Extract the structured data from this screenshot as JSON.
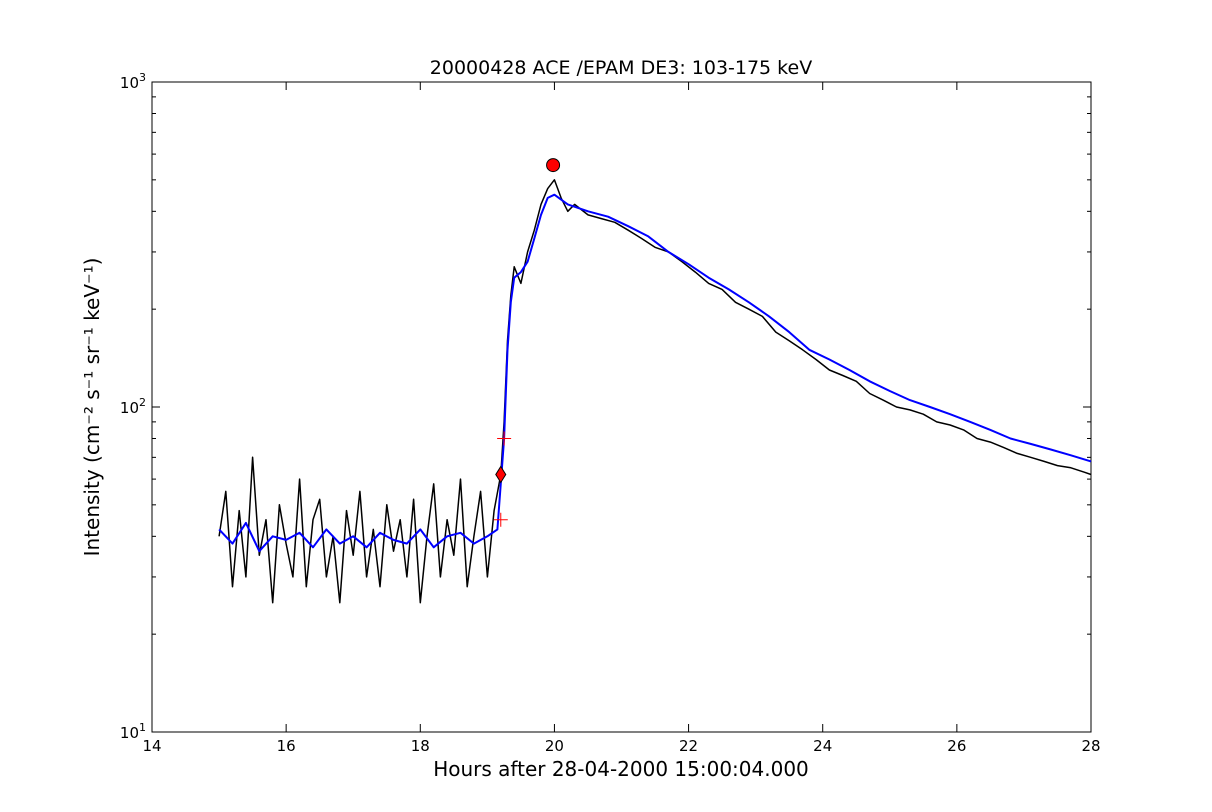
{
  "chart_data": {
    "type": "line",
    "title": "20000428 ACE /EPAM DE3: 103-175 keV",
    "xlabel": "Hours after 28-04-2000 15:00:04.000",
    "ylabel": "Intensity (cm⁻² s⁻¹ sr⁻¹ keV⁻¹)",
    "xlim": [
      14,
      28
    ],
    "ylim": [
      10,
      1000
    ],
    "yscale": "log",
    "grid": false,
    "xticks": [
      14,
      16,
      18,
      20,
      22,
      24,
      26,
      28
    ],
    "xtick_labels": [
      "14",
      "16",
      "18",
      "20",
      "22",
      "24",
      "26",
      "28"
    ],
    "yticks": [
      10,
      100,
      1000
    ],
    "ytick_base": "10",
    "ytick_exponents": [
      "1",
      "2",
      "3"
    ],
    "colors": {
      "raw": "#000000",
      "smoothed": "#0000ff",
      "marker": "#ff0000"
    },
    "series": [
      {
        "role": "raw",
        "x": [
          15.0,
          15.1,
          15.2,
          15.3,
          15.4,
          15.5,
          15.6,
          15.7,
          15.8,
          15.9,
          16.0,
          16.1,
          16.2,
          16.3,
          16.4,
          16.5,
          16.6,
          16.7,
          16.8,
          16.9,
          17.0,
          17.1,
          17.2,
          17.3,
          17.4,
          17.5,
          17.6,
          17.7,
          17.8,
          17.9,
          18.0,
          18.1,
          18.2,
          18.3,
          18.4,
          18.5,
          18.6,
          18.7,
          18.8,
          18.9,
          19.0,
          19.1,
          19.2,
          19.25,
          19.3,
          19.35,
          19.4,
          19.5,
          19.6,
          19.7,
          19.8,
          19.9,
          20.0,
          20.1,
          20.2,
          20.3,
          20.5,
          20.7,
          20.9,
          21.1,
          21.3,
          21.5,
          21.7,
          21.9,
          22.1,
          22.3,
          22.5,
          22.7,
          22.9,
          23.1,
          23.3,
          23.5,
          23.7,
          23.9,
          24.1,
          24.3,
          24.5,
          24.7,
          24.9,
          25.1,
          25.3,
          25.5,
          25.7,
          25.9,
          26.1,
          26.3,
          26.5,
          26.7,
          26.9,
          27.1,
          27.3,
          27.5,
          27.7,
          27.9,
          28.0
        ],
        "y": [
          40,
          55,
          28,
          48,
          30,
          70,
          35,
          45,
          25,
          50,
          38,
          30,
          60,
          28,
          45,
          52,
          30,
          40,
          25,
          48,
          35,
          55,
          30,
          42,
          28,
          50,
          36,
          45,
          30,
          52,
          25,
          40,
          58,
          30,
          45,
          35,
          60,
          28,
          40,
          55,
          30,
          48,
          62,
          90,
          160,
          220,
          270,
          240,
          300,
          350,
          420,
          470,
          500,
          440,
          400,
          420,
          390,
          380,
          370,
          350,
          330,
          310,
          300,
          280,
          260,
          240,
          230,
          210,
          200,
          190,
          170,
          160,
          150,
          140,
          130,
          125,
          120,
          110,
          105,
          100,
          98,
          95,
          90,
          88,
          85,
          80,
          78,
          75,
          72,
          70,
          68,
          66,
          65,
          63,
          62
        ]
      },
      {
        "role": "smoothed",
        "x": [
          15.0,
          15.2,
          15.4,
          15.6,
          15.8,
          16.0,
          16.2,
          16.4,
          16.6,
          16.8,
          17.0,
          17.2,
          17.4,
          17.6,
          17.8,
          18.0,
          18.2,
          18.4,
          18.6,
          18.8,
          19.0,
          19.15,
          19.25,
          19.3,
          19.35,
          19.4,
          19.5,
          19.6,
          19.7,
          19.8,
          19.9,
          20.0,
          20.2,
          20.5,
          20.8,
          21.1,
          21.4,
          21.7,
          22.0,
          22.3,
          22.6,
          22.9,
          23.2,
          23.5,
          23.8,
          24.1,
          24.4,
          24.7,
          25.0,
          25.3,
          25.6,
          25.9,
          26.2,
          26.5,
          26.8,
          27.1,
          27.4,
          27.7,
          28.0
        ],
        "y": [
          42,
          38,
          44,
          36,
          40,
          39,
          41,
          37,
          42,
          38,
          40,
          37,
          41,
          39,
          38,
          42,
          37,
          40,
          41,
          38,
          40,
          42,
          80,
          150,
          210,
          250,
          260,
          280,
          330,
          390,
          440,
          450,
          420,
          400,
          385,
          360,
          335,
          300,
          275,
          250,
          230,
          210,
          190,
          170,
          150,
          140,
          130,
          120,
          112,
          105,
          100,
          95,
          90,
          85,
          80,
          77,
          74,
          71,
          68
        ]
      }
    ],
    "markers": [
      {
        "shape": "circle",
        "x": 19.98,
        "y": 555
      },
      {
        "shape": "diamond",
        "x": 19.2,
        "y": 62
      },
      {
        "shape": "plus",
        "x": 19.25,
        "y": 80
      },
      {
        "shape": "plus",
        "x": 19.2,
        "y": 45
      }
    ]
  }
}
